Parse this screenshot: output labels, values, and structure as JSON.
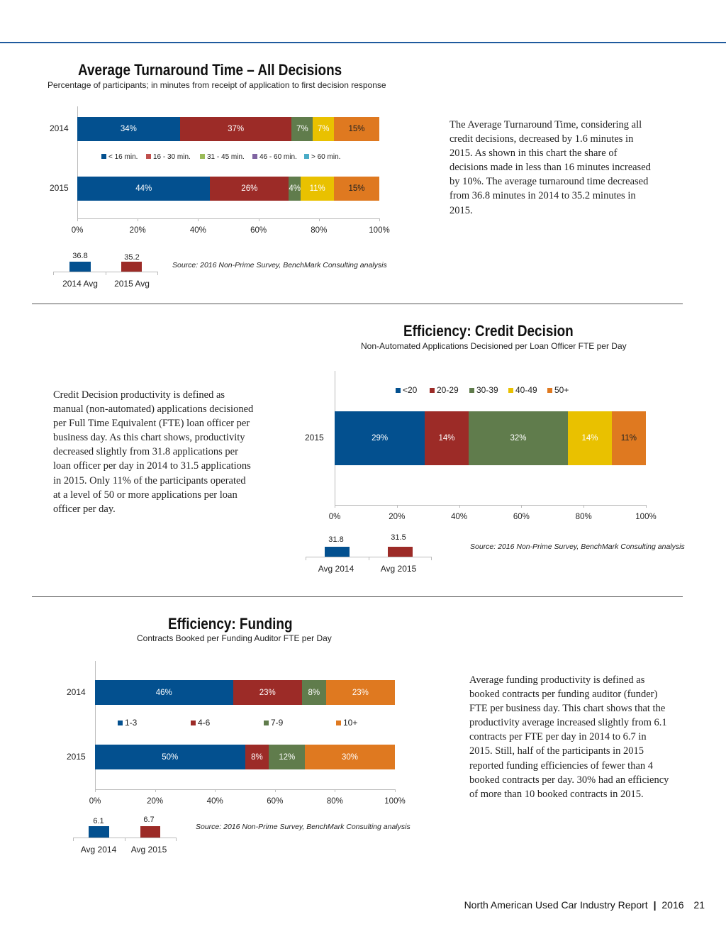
{
  "colors": {
    "blue": "#03508f",
    "red": "#9c2b27",
    "green": "#607c4c",
    "yellow": "#e9c100",
    "orange": "#df7920",
    "purple": "#7a5fa5",
    "teal": "#4aacc6",
    "rule": "#1f5a9e"
  },
  "chart_data": [
    {
      "type": "bar",
      "orientation": "horizontal",
      "stacked": true,
      "title": "Average Turnaround Time – All Decisions",
      "subtitle": "Percentage of participants; in minutes from receipt of application to first decision response",
      "categories": [
        "2014",
        "2015"
      ],
      "xlim": [
        0,
        100
      ],
      "xticks": [
        "0%",
        "20%",
        "40%",
        "60%",
        "80%",
        "100%"
      ],
      "legend": [
        "<  16 min.",
        "16 - 30 min.",
        "31 - 45 min.",
        "46 - 60 min.",
        "> 60 min."
      ],
      "legend_colors": [
        "#03508f",
        "#c0504d",
        "#9bbb59",
        "#8064a2",
        "#4bacc6"
      ],
      "segment_colors": [
        "#03508f",
        "#9c2b27",
        "#607c4c",
        "#e9c100",
        "#df7920"
      ],
      "series": [
        {
          "values": [
            34,
            44
          ],
          "labels": [
            "34%",
            "44%"
          ]
        },
        {
          "values": [
            37,
            26
          ],
          "labels": [
            "37%",
            "26%"
          ]
        },
        {
          "values": [
            7,
            4
          ],
          "labels": [
            "7%",
            "4%"
          ]
        },
        {
          "values": [
            7,
            11
          ],
          "labels": [
            "7%",
            "11%"
          ]
        },
        {
          "values": [
            15,
            15
          ],
          "labels": [
            "15%",
            "15%"
          ]
        }
      ],
      "averages": {
        "categories": [
          "2014 Avg",
          "2015 Avg"
        ],
        "values": [
          36.8,
          35.2
        ],
        "labels": [
          "36.8",
          "35.2"
        ]
      },
      "source": "Source: 2016 Non-Prime Survey, BenchMark Consulting analysis"
    },
    {
      "type": "bar",
      "orientation": "horizontal",
      "stacked": true,
      "title": "Efficiency: Credit Decision",
      "subtitle": "Non-Automated Applications Decisioned per Loan Officer FTE per Day",
      "categories": [
        "2015"
      ],
      "xlim": [
        0,
        100
      ],
      "xticks": [
        "0%",
        "20%",
        "40%",
        "60%",
        "80%",
        "100%"
      ],
      "legend": [
        "<20",
        "20-29",
        "30-39",
        "40-49",
        "50+"
      ],
      "legend_colors": [
        "#03508f",
        "#9c2b27",
        "#607c4c",
        "#e9c100",
        "#df7920"
      ],
      "segment_colors": [
        "#03508f",
        "#9c2b27",
        "#607c4c",
        "#e9c100",
        "#df7920"
      ],
      "series": [
        {
          "values": [
            29
          ],
          "labels": [
            "29%"
          ]
        },
        {
          "values": [
            14
          ],
          "labels": [
            "14%"
          ]
        },
        {
          "values": [
            32
          ],
          "labels": [
            "32%"
          ]
        },
        {
          "values": [
            14
          ],
          "labels": [
            "14%"
          ]
        },
        {
          "values": [
            11
          ],
          "labels": [
            "11%"
          ]
        }
      ],
      "averages": {
        "categories": [
          "Avg 2014",
          "Avg 2015"
        ],
        "values": [
          31.8,
          31.5
        ],
        "labels": [
          "31.8",
          "31.5"
        ]
      },
      "source": "Source: 2016 Non-Prime Survey, BenchMark Consulting analysis"
    },
    {
      "type": "bar",
      "orientation": "horizontal",
      "stacked": true,
      "title": "Efficiency: Funding",
      "subtitle": "Contracts Booked per Funding Auditor FTE per Day",
      "categories": [
        "2014",
        "2015"
      ],
      "xlim": [
        0,
        100
      ],
      "xticks": [
        "0%",
        "20%",
        "40%",
        "60%",
        "80%",
        "100%"
      ],
      "legend": [
        "1-3",
        "4-6",
        "7-9",
        "10+"
      ],
      "legend_colors": [
        "#03508f",
        "#9c2b27",
        "#607c4c",
        "#df7920"
      ],
      "segment_colors": [
        "#03508f",
        "#9c2b27",
        "#607c4c",
        "#df7920"
      ],
      "series": [
        {
          "values": [
            46,
            50
          ],
          "labels": [
            "46%",
            "50%"
          ]
        },
        {
          "values": [
            23,
            8
          ],
          "labels": [
            "23%",
            "8%"
          ]
        },
        {
          "values": [
            8,
            12
          ],
          "labels": [
            "8%",
            "12%"
          ]
        },
        {
          "values": [
            23,
            30
          ],
          "labels": [
            "23%",
            "30%"
          ]
        }
      ],
      "averages": {
        "categories": [
          "Avg 2014",
          "Avg 2015"
        ],
        "values": [
          6.1,
          6.7
        ],
        "labels": [
          "6.1",
          "6.7"
        ]
      },
      "source": "Source: 2016 Non-Prime Survey, BenchMark Consulting analysis"
    }
  ],
  "paragraphs": {
    "turnaround": "The Average Turnaround Time, considering all credit decisions, decreased by 1.6 minutes in 2015.  As shown in this chart the share of decisions made in less than 16 minutes increased by 10%. The average turnaround time decreased from 36.8 minutes in 2014 to 35.2 minutes in 2015.",
    "credit": "Credit Decision productivity is defined as manual (non-automated) applications decisioned per Full Time Equivalent (FTE) loan officer per business day. As this chart shows, productivity decreased slightly from 31.8 applications per loan officer per day in 2014 to 31.5 applications in 2015. Only 11% of the participants operated at a level of 50 or more applications per loan officer per day.",
    "funding": "Average funding productivity is defined as booked contracts per funding auditor (funder) FTE per business day. This chart shows that the productivity average increased slightly from 6.1 contracts per FTE per day in 2014 to 6.7 in 2015. Still, half of the participants in 2015 reported funding efficiencies of fewer than 4 booked contracts per day. 30% had an efficiency of more than 10 booked contracts in 2015."
  },
  "footer": {
    "report": "North American Used Car Industry Report",
    "year": "2016",
    "page": "21"
  }
}
